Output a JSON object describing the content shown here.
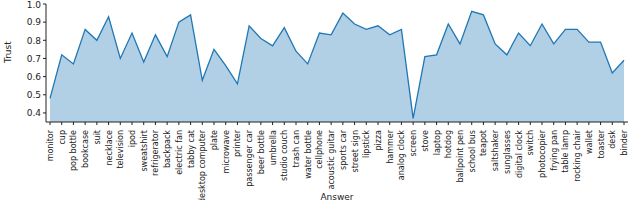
{
  "chart_data": {
    "type": "area",
    "x_label": "Answer",
    "y_label": "Trust",
    "categories": [
      "monitor",
      "cup",
      "pop bottle",
      "bookcase",
      "suit",
      "necklace",
      "television",
      "ipod",
      "sweatshirt",
      "refrigerator",
      "backpack",
      "electric fan",
      "tabby cat",
      "desktop computer",
      "plate",
      "microwave",
      "printer",
      "passenger car",
      "beer bottle",
      "umbrella",
      "studio couch",
      "trash can",
      "water bottle",
      "cellphone",
      "acoustic guitar",
      "sports car",
      "street sign",
      "lipstick",
      "pizza",
      "hammer",
      "analog clock",
      "screen",
      "stove",
      "laptop",
      "hotdog",
      "ballpoint pen",
      "school bus",
      "teapot",
      "saltshaker",
      "sunglasses",
      "digital clock",
      "switch",
      "photocopier",
      "frying pan",
      "table lamp",
      "rocking chair",
      "wallet",
      "toaster",
      "desk",
      "binder"
    ],
    "values": [
      0.48,
      0.72,
      0.67,
      0.86,
      0.8,
      0.93,
      0.7,
      0.84,
      0.68,
      0.83,
      0.71,
      0.9,
      0.94,
      0.58,
      0.75,
      0.66,
      0.56,
      0.88,
      0.81,
      0.77,
      0.87,
      0.74,
      0.67,
      0.84,
      0.83,
      0.95,
      0.89,
      0.86,
      0.88,
      0.83,
      0.86,
      0.37,
      0.71,
      0.72,
      0.89,
      0.78,
      0.96,
      0.94,
      0.78,
      0.72,
      0.84,
      0.77,
      0.89,
      0.78,
      0.86,
      0.86,
      0.79,
      0.79,
      0.62,
      0.69
    ],
    "color": "#1f77b4",
    "ylim": [
      0.35,
      1.0
    ],
    "yticks": [
      0.4,
      0.5,
      0.6,
      0.7,
      0.8,
      0.9,
      {
        "value": 1.0,
        "label": "1.0"
      }
    ],
    "grid": false
  }
}
